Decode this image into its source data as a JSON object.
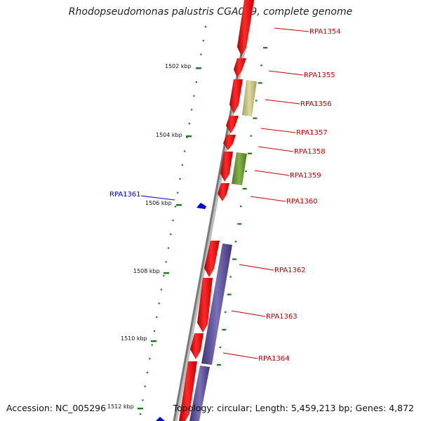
{
  "title": "Rhodopseudomonas palustris CGA009, complete genome",
  "footer": {
    "accession": "Accession: NC_005296",
    "summary": "Topology: circular; Length: 5,459,213 bp; Genes: 4,872"
  },
  "colors": {
    "forward_gene": "#ff0000",
    "reverse_gene": "#0000ff",
    "yellow_gene": "#c8c47a",
    "green_gene": "#6e9a2e",
    "purple_gene": "#5a4f96",
    "kbp_tick": "#1a7a1a",
    "forward_label": "#cc0000",
    "reverse_label": "#0000cc"
  },
  "scale_labels": [
    "1502 kbp",
    "1504 kbp",
    "1506 kbp",
    "1508 kbp",
    "1510 kbp",
    "1512 kbp"
  ],
  "genes": [
    {
      "label": "RPA1354",
      "strand": "forward"
    },
    {
      "label": "RPA1355",
      "strand": "forward"
    },
    {
      "label": "RPA1356",
      "strand": "forward"
    },
    {
      "label": "RPA1357",
      "strand": "forward"
    },
    {
      "label": "RPA1358",
      "strand": "forward"
    },
    {
      "label": "RPA1359",
      "strand": "forward"
    },
    {
      "label": "RPA1360",
      "strand": "forward"
    },
    {
      "label": "RPA1361",
      "strand": "reverse"
    },
    {
      "label": "RPA1362",
      "strand": "forward"
    },
    {
      "label": "RPA1363",
      "strand": "forward"
    },
    {
      "label": "RPA1364",
      "strand": "forward"
    }
  ]
}
